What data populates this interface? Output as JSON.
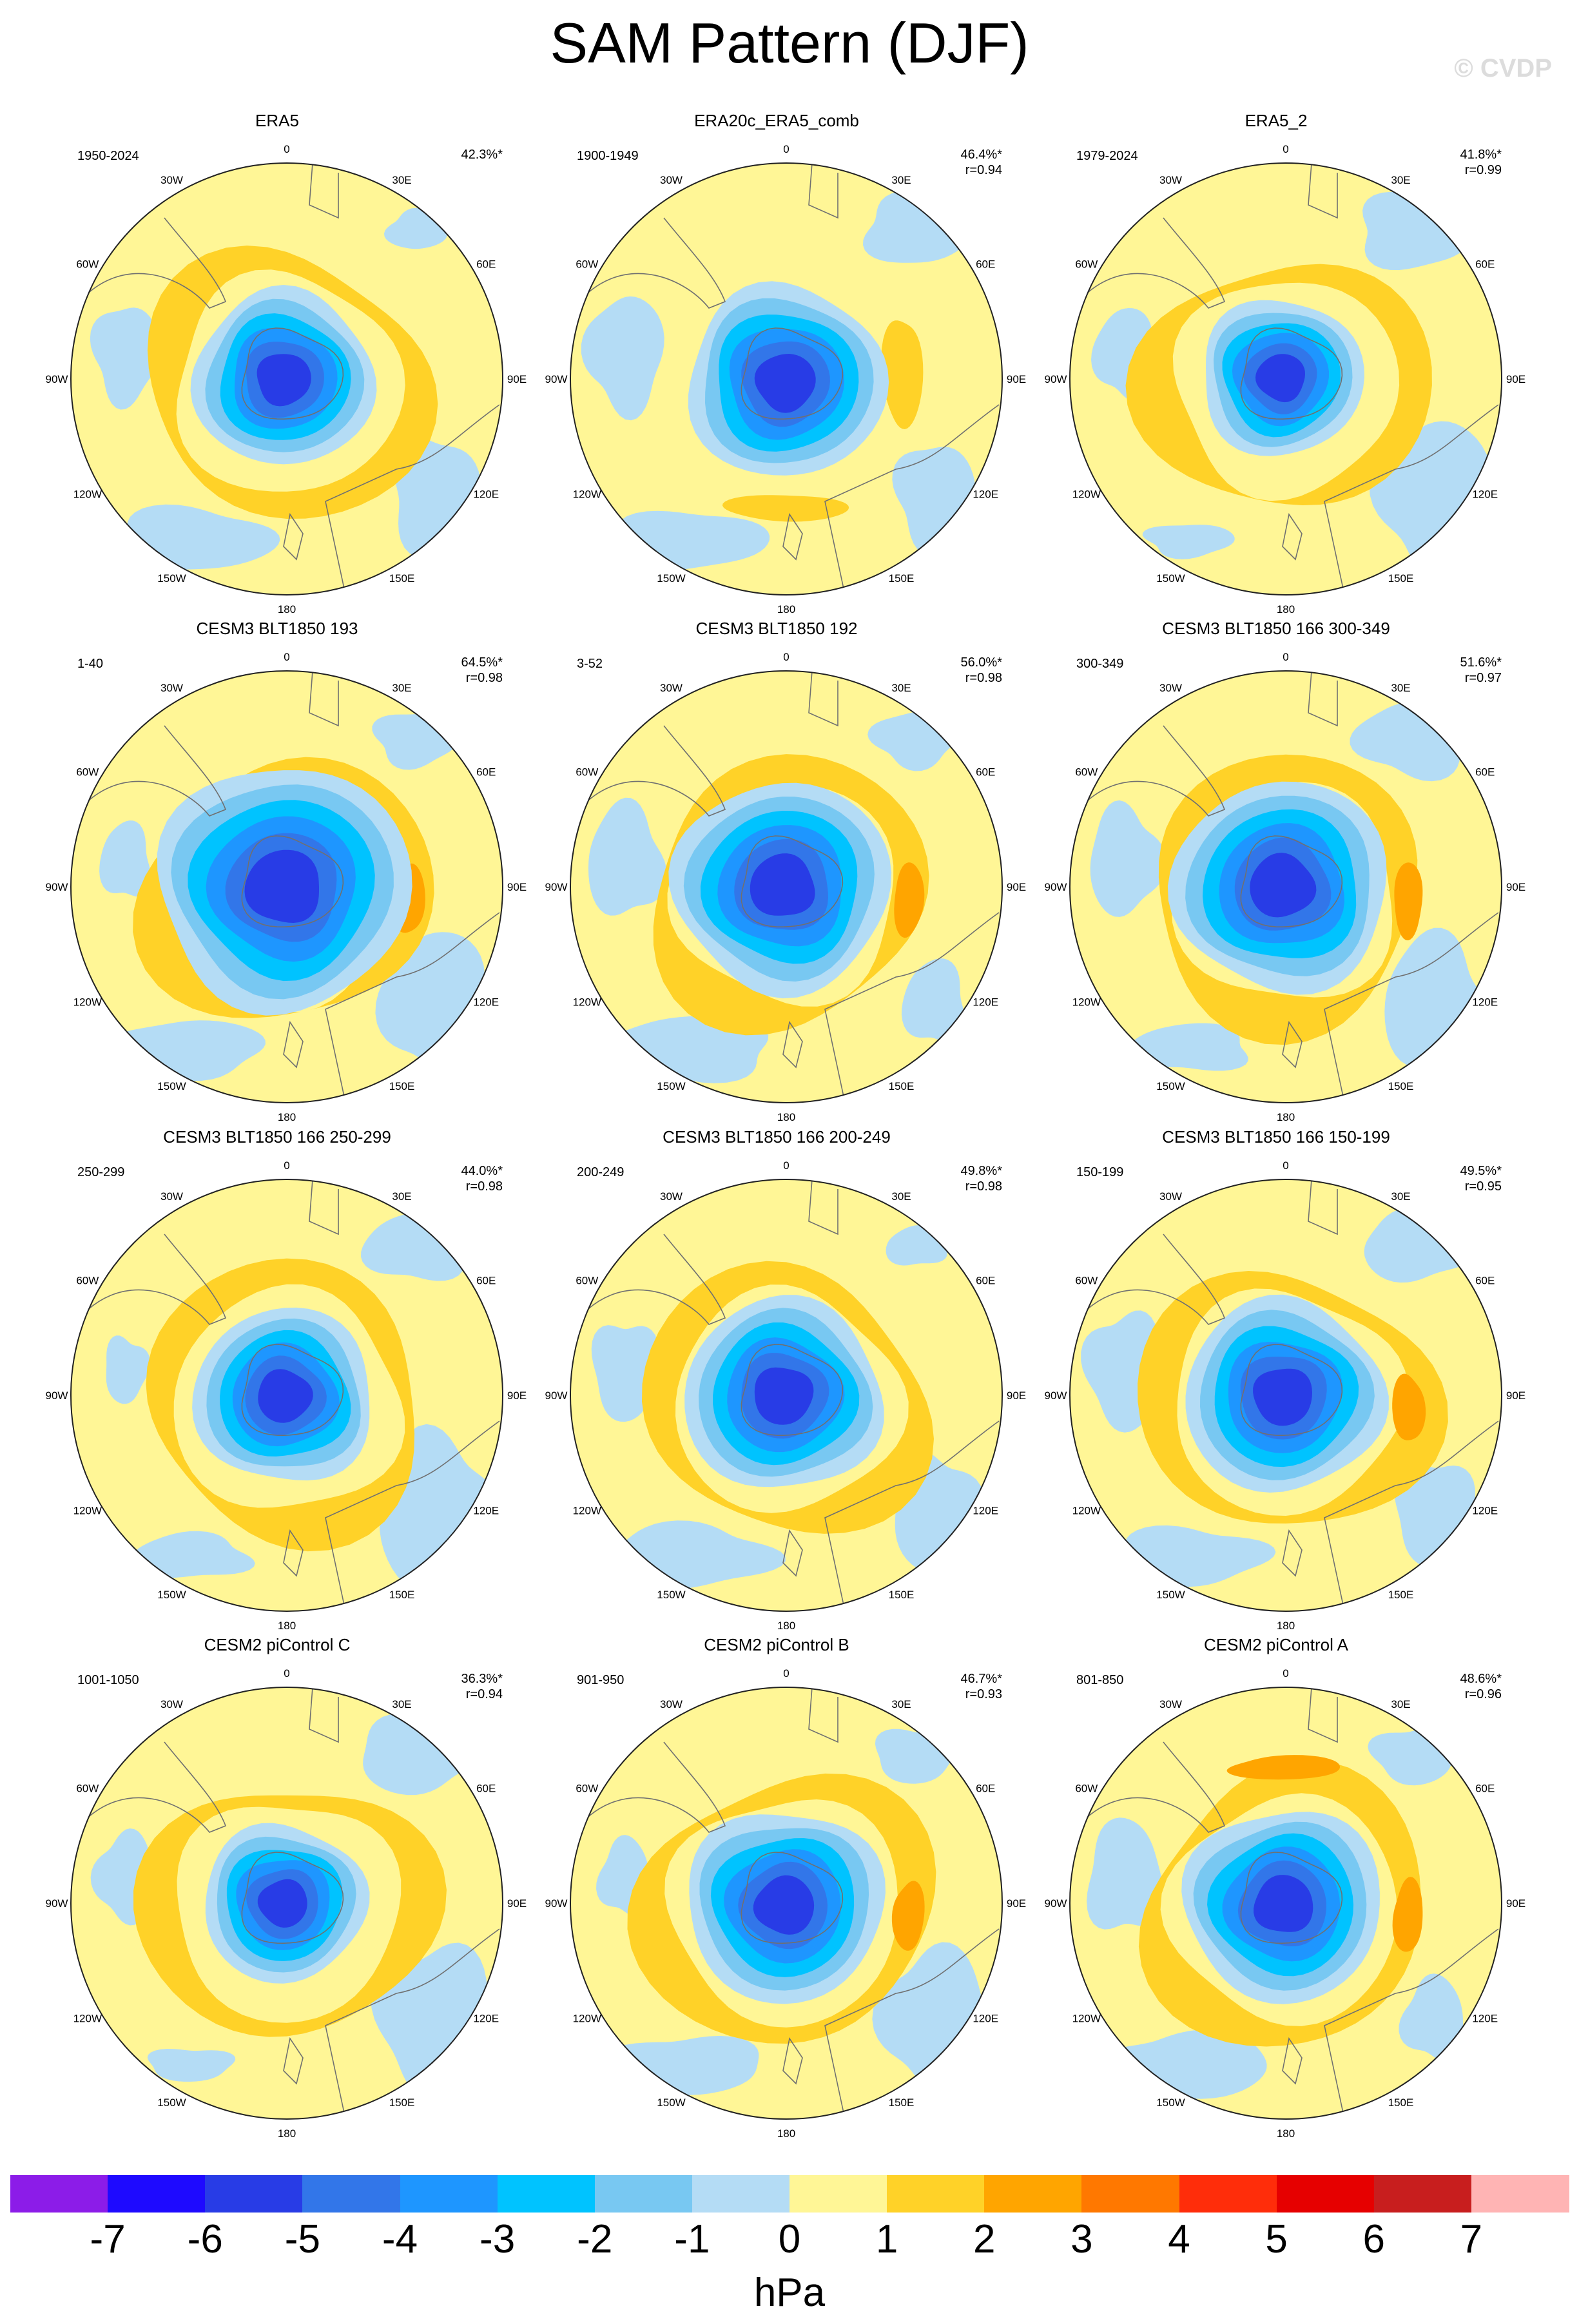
{
  "title": "SAM Pattern (DJF)",
  "watermark": "© CVDP",
  "units": "hPa",
  "lon_labels": [
    "0",
    "30E",
    "60E",
    "90E",
    "120E",
    "150E",
    "180",
    "150W",
    "120W",
    "90W",
    "60W",
    "30W"
  ],
  "colorbar": {
    "colors": [
      "#8c1ce8",
      "#1e0aff",
      "#283ce6",
      "#3276e9",
      "#1e96ff",
      "#00c3ff",
      "#78c8f2",
      "#b4dcf5",
      "#fff696",
      "#ffd228",
      "#ffa500",
      "#ff7800",
      "#ff2d0a",
      "#e60000",
      "#c81e1e",
      "#ffb4b4"
    ],
    "labels": [
      "-7",
      "-6",
      "-5",
      "-4",
      "-3",
      "-2",
      "-1",
      "0",
      "1",
      "2",
      "3",
      "4",
      "5",
      "6",
      "7"
    ]
  },
  "colors": {
    "land_outline": "#707070",
    "map_outline": "#222222",
    "background": "#fff696"
  },
  "panels": [
    {
      "title": "ERA5",
      "years": "1950-2024",
      "pct": "42.3%*",
      "r": "",
      "strength": 1.0,
      "amp": 1.0,
      "offset": 0.0,
      "hole": 4
    },
    {
      "title": "ERA20c_ERA5_comb",
      "years": "1900-1949",
      "pct": "46.4%*",
      "r": "r=0.94",
      "strength": 1.1,
      "amp": 0.4,
      "offset": 0.4,
      "hole": 4
    },
    {
      "title": "ERA5_2",
      "years": "1979-2024",
      "pct": "41.8%*",
      "r": "r=0.99",
      "strength": 0.9,
      "amp": 1.3,
      "offset": -0.2,
      "hole": 4
    },
    {
      "title": "CESM3 BLT1850 193",
      "years": "1-40",
      "pct": "64.5%*",
      "r": "r=0.98",
      "strength": 1.4,
      "amp": 2.2,
      "offset": 0.0,
      "hole": 6
    },
    {
      "title": "CESM3 BLT1850 192",
      "years": "3-52",
      "pct": "56.0%*",
      "r": "r=0.98",
      "strength": 1.2,
      "amp": 1.8,
      "offset": -0.1,
      "hole": 5
    },
    {
      "title": "CESM3 BLT1850 166 300-349",
      "years": "300-349",
      "pct": "51.6%*",
      "r": "r=0.97",
      "strength": 1.2,
      "amp": 1.9,
      "offset": -0.1,
      "hole": 5
    },
    {
      "title": "CESM3 BLT1850 166 250-299",
      "years": "250-299",
      "pct": "44.0%*",
      "r": "r=0.98",
      "strength": 1.0,
      "amp": 1.6,
      "offset": 0.1,
      "hole": 4
    },
    {
      "title": "CESM3 BLT1850 166 200-249",
      "years": "200-249",
      "pct": "49.8%*",
      "r": "r=0.98",
      "strength": 1.1,
      "amp": 1.7,
      "offset": 0.0,
      "hole": 5
    },
    {
      "title": "CESM3 BLT1850 166 150-199",
      "years": "150-199",
      "pct": "49.5%*",
      "r": "r=0.95",
      "strength": 1.1,
      "amp": 2.0,
      "offset": 0.1,
      "hole": 5
    },
    {
      "title": "CESM2 piControl C",
      "years": "1001-1050",
      "pct": "36.3%*",
      "r": "r=0.94",
      "strength": 0.9,
      "amp": 1.5,
      "offset": 0.0,
      "hole": 4
    },
    {
      "title": "CESM2 piControl B",
      "years": "901-950",
      "pct": "46.7%*",
      "r": "r=0.93",
      "strength": 1.1,
      "amp": 2.2,
      "offset": 0.3,
      "hole": 4
    },
    {
      "title": "CESM2 piControl A",
      "years": "801-850",
      "pct": "48.6%*",
      "r": "r=0.96",
      "strength": 1.1,
      "amp": 2.6,
      "offset": 0.2,
      "hole": 5
    }
  ]
}
